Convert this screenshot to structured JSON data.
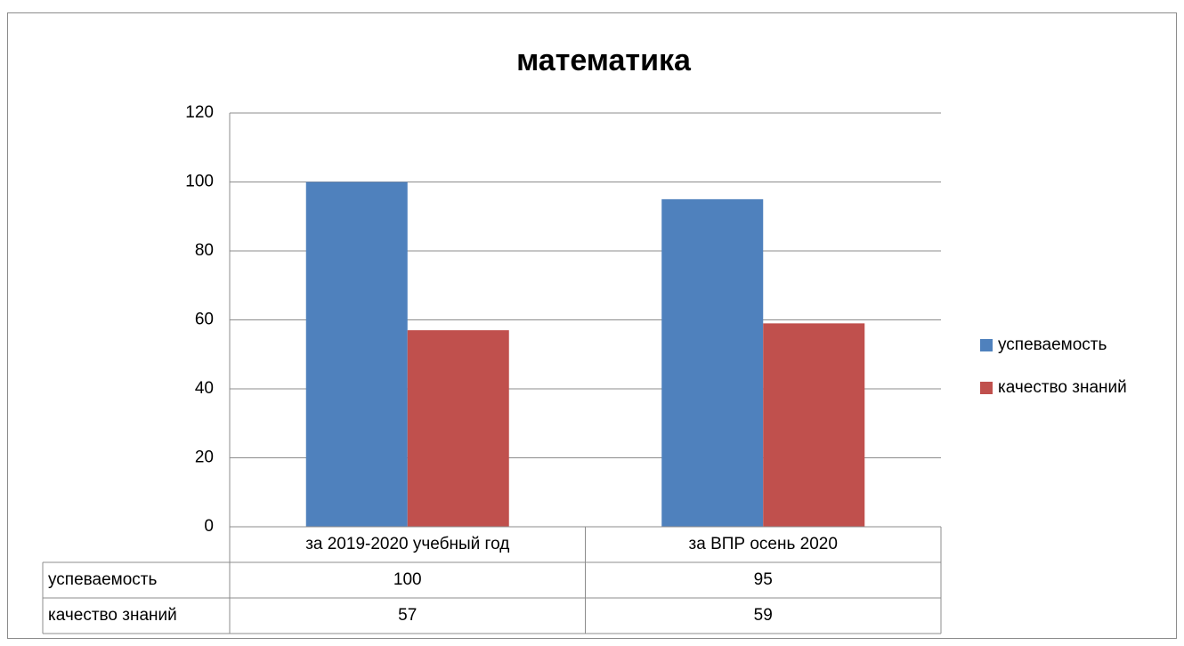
{
  "chart_data": {
    "type": "bar",
    "title": "математика",
    "categories": [
      "за 2019-2020 учебный год",
      "за ВПР осень 2020"
    ],
    "series": [
      {
        "name": "успеваемость",
        "color": "#4f81bd",
        "values": [
          100,
          95
        ]
      },
      {
        "name": "качество знаний",
        "color": "#c0504d",
        "values": [
          57,
          59
        ]
      }
    ],
    "ylim": [
      0,
      120
    ],
    "yticks": [
      0,
      20,
      40,
      60,
      80,
      100,
      120
    ],
    "grid": true,
    "legend": "right"
  }
}
